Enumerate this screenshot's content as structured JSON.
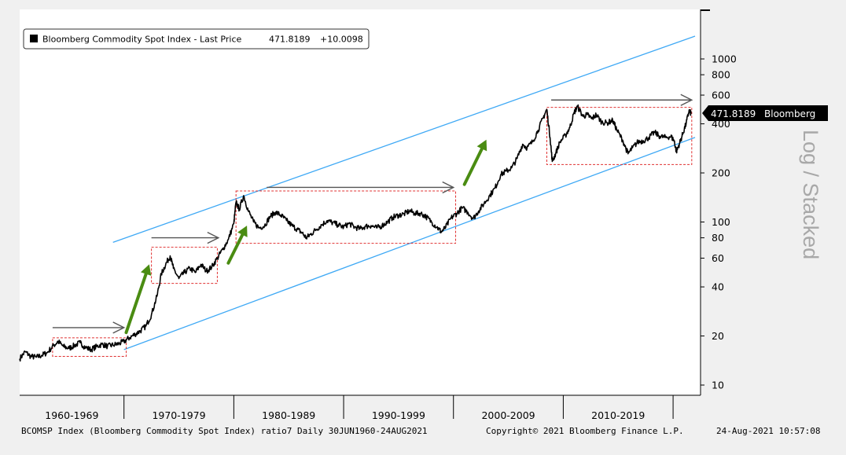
{
  "legend": {
    "label": "Bloomberg Commodity Spot Index - Last Price",
    "last_price": "471.8189",
    "change": "+10.0098",
    "swatch_color": "#000000"
  },
  "last_price_tag": {
    "value": "471.8189",
    "source": "Bloomberg"
  },
  "scale_label": "Log / Stacked",
  "footer": {
    "left": "BCOMSP Index (Bloomberg Commodity Spot Index) ratio7  Daily 30JUN1960-24AUG2021",
    "copyright": "Copyright© 2021 Bloomberg Finance L.P.",
    "timestamp": "24-Aug-2021 10:57:08"
  },
  "colors": {
    "price_line": "#000000",
    "channel": "#3fa9f5",
    "range_box": "#e03030",
    "flat_arrow": "#555555",
    "up_arrow": "#4a8c12"
  },
  "chart_data": {
    "type": "line",
    "title": "",
    "series": [
      {
        "name": "Bloomberg Commodity Spot Index",
        "points": [
          [
            1960.5,
            14.5
          ],
          [
            1961.0,
            16.0
          ],
          [
            1961.5,
            15.0
          ],
          [
            1962.0,
            14.8
          ],
          [
            1962.5,
            15.2
          ],
          [
            1963.0,
            15.8
          ],
          [
            1963.6,
            17.5
          ],
          [
            1964.0,
            18.5
          ],
          [
            1964.5,
            17.2
          ],
          [
            1965.0,
            16.8
          ],
          [
            1965.5,
            17.5
          ],
          [
            1966.0,
            18.2
          ],
          [
            1966.5,
            17.0
          ],
          [
            1967.0,
            16.5
          ],
          [
            1967.5,
            17.2
          ],
          [
            1968.0,
            17.8
          ],
          [
            1968.5,
            17.3
          ],
          [
            1969.0,
            17.6
          ],
          [
            1969.5,
            17.9
          ],
          [
            1970.0,
            18.5
          ],
          [
            1970.5,
            19.5
          ],
          [
            1971.0,
            20.5
          ],
          [
            1971.5,
            21.5
          ],
          [
            1972.0,
            23.0
          ],
          [
            1972.5,
            27.0
          ],
          [
            1973.0,
            35.0
          ],
          [
            1973.4,
            48.0
          ],
          [
            1973.8,
            55.0
          ],
          [
            1974.2,
            62.0
          ],
          [
            1974.5,
            52.0
          ],
          [
            1975.0,
            45.0
          ],
          [
            1975.5,
            49.0
          ],
          [
            1976.0,
            52.0
          ],
          [
            1976.5,
            49.0
          ],
          [
            1977.0,
            55.0
          ],
          [
            1977.5,
            50.0
          ],
          [
            1978.0,
            53.0
          ],
          [
            1978.5,
            60.0
          ],
          [
            1979.0,
            68.0
          ],
          [
            1979.5,
            78.0
          ],
          [
            1980.0,
            98.0
          ],
          [
            1980.2,
            132.0
          ],
          [
            1980.5,
            120.0
          ],
          [
            1980.9,
            145.0
          ],
          [
            1981.3,
            118.0
          ],
          [
            1981.8,
            100.0
          ],
          [
            1982.3,
            92.0
          ],
          [
            1982.8,
            95.0
          ],
          [
            1983.3,
            108.0
          ],
          [
            1983.8,
            115.0
          ],
          [
            1984.3,
            110.0
          ],
          [
            1984.8,
            102.0
          ],
          [
            1985.3,
            95.0
          ],
          [
            1985.8,
            90.0
          ],
          [
            1986.2,
            86.0
          ],
          [
            1986.6,
            80.0
          ],
          [
            1987.0,
            84.0
          ],
          [
            1987.5,
            90.0
          ],
          [
            1988.0,
            96.0
          ],
          [
            1988.5,
            102.0
          ],
          [
            1989.0,
            99.0
          ],
          [
            1989.5,
            96.0
          ],
          [
            1990.0,
            93.0
          ],
          [
            1990.5,
            98.0
          ],
          [
            1991.0,
            93.0
          ],
          [
            1991.5,
            91.0
          ],
          [
            1992.0,
            94.0
          ],
          [
            1992.5,
            95.0
          ],
          [
            1993.0,
            92.0
          ],
          [
            1993.5,
            95.0
          ],
          [
            1994.0,
            100.0
          ],
          [
            1994.5,
            107.0
          ],
          [
            1995.0,
            110.0
          ],
          [
            1995.5,
            112.0
          ],
          [
            1996.0,
            117.0
          ],
          [
            1996.5,
            113.0
          ],
          [
            1997.0,
            113.0
          ],
          [
            1997.5,
            108.0
          ],
          [
            1998.0,
            100.0
          ],
          [
            1998.5,
            93.0
          ],
          [
            1998.9,
            87.0
          ],
          [
            1999.3,
            93.0
          ],
          [
            1999.8,
            106.0
          ],
          [
            2000.3,
            113.0
          ],
          [
            2000.8,
            122.0
          ],
          [
            2001.3,
            115.0
          ],
          [
            2001.8,
            105.0
          ],
          [
            2002.3,
            117.0
          ],
          [
            2002.8,
            130.0
          ],
          [
            2003.3,
            145.0
          ],
          [
            2003.8,
            162.0
          ],
          [
            2004.3,
            195.0
          ],
          [
            2004.8,
            205.0
          ],
          [
            2005.3,
            215.0
          ],
          [
            2005.8,
            245.0
          ],
          [
            2006.3,
            300.0
          ],
          [
            2006.7,
            285.0
          ],
          [
            2007.2,
            310.0
          ],
          [
            2007.7,
            365.0
          ],
          [
            2008.2,
            440.0
          ],
          [
            2008.5,
            490.0
          ],
          [
            2008.8,
            330.0
          ],
          [
            2009.0,
            235.0
          ],
          [
            2009.3,
            262.0
          ],
          [
            2009.7,
            310.0
          ],
          [
            2010.2,
            340.0
          ],
          [
            2010.6,
            380.0
          ],
          [
            2011.0,
            470.0
          ],
          [
            2011.3,
            510.0
          ],
          [
            2011.8,
            445.0
          ],
          [
            2012.2,
            455.0
          ],
          [
            2012.6,
            430.0
          ],
          [
            2013.0,
            455.0
          ],
          [
            2013.5,
            410.0
          ],
          [
            2014.0,
            405.0
          ],
          [
            2014.5,
            420.0
          ],
          [
            2014.9,
            365.0
          ],
          [
            2015.4,
            318.0
          ],
          [
            2015.9,
            262.0
          ],
          [
            2016.3,
            285.0
          ],
          [
            2016.8,
            310.0
          ],
          [
            2017.3,
            315.0
          ],
          [
            2017.8,
            330.0
          ],
          [
            2018.3,
            355.0
          ],
          [
            2018.8,
            335.0
          ],
          [
            2019.3,
            330.0
          ],
          [
            2019.8,
            335.0
          ],
          [
            2020.1,
            315.0
          ],
          [
            2020.3,
            270.0
          ],
          [
            2020.6,
            305.0
          ],
          [
            2020.9,
            350.0
          ],
          [
            2021.2,
            405.0
          ],
          [
            2021.45,
            480.0
          ],
          [
            2021.65,
            462.0
          ]
        ]
      }
    ],
    "y_scale": "log",
    "ylim": [
      9,
      2000
    ],
    "xlim": [
      1960.5,
      2022.5
    ],
    "y_ticks": [
      10,
      20,
      40,
      60,
      80,
      100,
      200,
      400,
      600,
      800,
      1000
    ],
    "y_tick_labels": [
      "10",
      "20",
      "40",
      "60",
      "80",
      "100",
      "200",
      "400",
      "600",
      "800",
      "1000"
    ],
    "x_category_labels": [
      "1960-1969",
      "1970-1979",
      "1980-1989",
      "1990-1999",
      "2000-2009",
      "2010-2019"
    ],
    "x_category_ranges": [
      [
        1960.5,
        1970
      ],
      [
        1970,
        1980
      ],
      [
        1980,
        1990
      ],
      [
        1990,
        2000
      ],
      [
        2000,
        2010
      ],
      [
        2010,
        2020
      ]
    ],
    "x_dividers": [
      1970,
      1980,
      1990,
      2000,
      2010,
      2020
    ],
    "grid": false,
    "legend_position": "top-left",
    "trend_channel": {
      "upper": [
        [
          1969.0,
          75.0
        ],
        [
          2022.0,
          1380.0
        ]
      ],
      "lower": [
        [
          1970.0,
          16.5
        ],
        [
          2022.0,
          330.0
        ]
      ]
    },
    "range_boxes": [
      {
        "x": [
          1963.5,
          1970.2
        ],
        "y": [
          15.0,
          19.5
        ]
      },
      {
        "x": [
          1972.5,
          1978.5
        ],
        "y": [
          42.0,
          70.0
        ]
      },
      {
        "x": [
          1980.2,
          2000.2
        ],
        "y": [
          74.0,
          155.0
        ]
      },
      {
        "x": [
          2008.5,
          2021.7
        ],
        "y": [
          225.0,
          505.0
        ]
      }
    ],
    "flat_arrows": [
      {
        "x": [
          1963.5,
          1970.0
        ],
        "y": 22.5
      },
      {
        "x": [
          1972.5,
          1978.6
        ],
        "y": 80.0
      },
      {
        "x": [
          1983.0,
          2000.0
        ],
        "y": 163.0
      },
      {
        "x": [
          2008.9,
          2021.7
        ],
        "y": 560.0
      }
    ],
    "up_arrows": [
      {
        "x": [
          1970.2,
          1972.3
        ],
        "y": [
          21.0,
          55.0
        ]
      },
      {
        "x": [
          1979.5,
          1981.2
        ],
        "y": [
          56.0,
          95.0
        ]
      },
      {
        "x": [
          2001.0,
          2003.0
        ],
        "y": [
          170.0,
          320.0
        ]
      }
    ]
  }
}
